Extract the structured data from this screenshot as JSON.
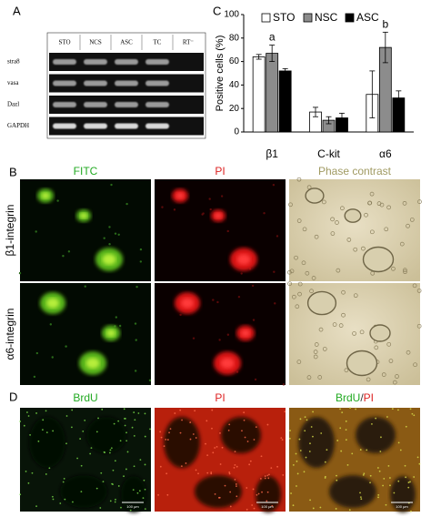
{
  "panel_a": {
    "label": "A",
    "lanes": [
      "STO",
      "NCS",
      "ASC",
      "TC",
      "RT⁻"
    ],
    "genes": [
      "stra8",
      "vasa",
      "Dazl",
      "GAPDH"
    ]
  },
  "chart_data": {
    "type": "bar",
    "label": "C",
    "ylabel": "Positive cells (%)",
    "categories": [
      "β1",
      "C-kit",
      "α6"
    ],
    "series": [
      {
        "name": "STO",
        "color": "#ffffff",
        "values": [
          64,
          17,
          32
        ],
        "errors": [
          2,
          4,
          20
        ]
      },
      {
        "name": "NSC",
        "color": "#8c8c8c",
        "values": [
          67,
          10,
          72
        ],
        "errors": [
          7,
          3,
          13
        ]
      },
      {
        "name": "ASC",
        "color": "#000000",
        "values": [
          52,
          12,
          29
        ],
        "errors": [
          2,
          4,
          6
        ]
      }
    ],
    "ylim": [
      0,
      100
    ],
    "yticks": [
      0,
      20,
      40,
      60,
      80,
      100
    ],
    "annotations": [
      "a",
      "b"
    ],
    "legend": "top"
  },
  "panel_b": {
    "label": "B",
    "columns": [
      "FITC",
      "PI",
      "Phase contrast"
    ],
    "rows": [
      "β1-integrin",
      "α6-integrin"
    ]
  },
  "panel_d": {
    "label": "D",
    "columns": [
      "BrdU",
      "PI"
    ],
    "merge": [
      "BrdU",
      "/",
      "PI"
    ],
    "scale_bar": "100 μm"
  }
}
